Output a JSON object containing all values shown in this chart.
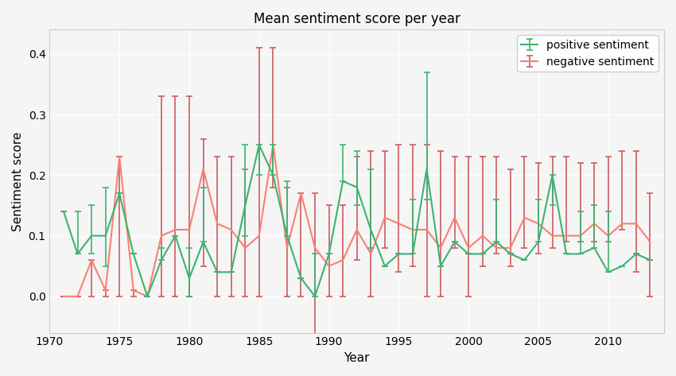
{
  "title": "Mean sentiment score per year",
  "xlabel": "Year",
  "ylabel": "Sentiment score",
  "background_color": "#f5f5f5",
  "grid_color": "#ffffff",
  "pos_line_color": "#3cb371",
  "pos_err_color": "#3cb371",
  "neg_line_color": "#fa8072",
  "neg_err_color": "#cd5c5c",
  "years": [
    1971,
    1972,
    1973,
    1974,
    1975,
    1976,
    1977,
    1978,
    1979,
    1980,
    1981,
    1982,
    1983,
    1984,
    1985,
    1986,
    1987,
    1988,
    1989,
    1990,
    1991,
    1992,
    1993,
    1994,
    1995,
    1996,
    1997,
    1998,
    1999,
    2000,
    2001,
    2002,
    2003,
    2004,
    2005,
    2006,
    2007,
    2008,
    2009,
    2010,
    2011,
    2012,
    2013
  ],
  "pos_mean": [
    0.14,
    0.07,
    0.1,
    0.1,
    0.17,
    0.07,
    0.0,
    0.06,
    0.1,
    0.03,
    0.09,
    0.04,
    0.04,
    0.15,
    0.25,
    0.2,
    0.1,
    0.03,
    0.0,
    0.07,
    0.19,
    0.18,
    0.11,
    0.05,
    0.07,
    0.07,
    0.21,
    0.05,
    0.09,
    0.07,
    0.07,
    0.09,
    0.07,
    0.06,
    0.09,
    0.2,
    0.07,
    0.07,
    0.08,
    0.04,
    0.05,
    0.07,
    0.06
  ],
  "pos_err_low": [
    0.0,
    0.0,
    0.03,
    0.05,
    0.0,
    0.0,
    0.0,
    0.0,
    0.0,
    0.03,
    0.0,
    0.0,
    0.0,
    0.05,
    0.05,
    0.0,
    0.0,
    0.0,
    0.0,
    0.0,
    0.0,
    0.03,
    0.03,
    0.0,
    0.0,
    0.0,
    0.05,
    0.0,
    0.0,
    0.0,
    0.0,
    0.0,
    0.0,
    0.0,
    0.0,
    0.05,
    0.0,
    0.0,
    0.0,
    0.0,
    0.0,
    0.0,
    0.0
  ],
  "pos_err_high": [
    0.0,
    0.07,
    0.05,
    0.08,
    0.0,
    0.0,
    0.0,
    0.02,
    0.0,
    0.05,
    0.09,
    0.0,
    0.0,
    0.1,
    0.0,
    0.05,
    0.09,
    0.0,
    0.07,
    0.0,
    0.06,
    0.06,
    0.1,
    0.0,
    0.0,
    0.09,
    0.16,
    0.0,
    0.0,
    0.0,
    0.0,
    0.07,
    0.0,
    0.0,
    0.07,
    0.0,
    0.0,
    0.07,
    0.07,
    0.1,
    0.0,
    0.0,
    0.0
  ],
  "neg_mean": [
    0.0,
    0.0,
    0.06,
    0.01,
    0.23,
    0.01,
    0.0,
    0.1,
    0.11,
    0.11,
    0.21,
    0.12,
    0.11,
    0.08,
    0.1,
    0.25,
    0.08,
    0.17,
    0.08,
    0.05,
    0.06,
    0.11,
    0.07,
    0.13,
    0.12,
    0.11,
    0.11,
    0.08,
    0.13,
    0.08,
    0.1,
    0.08,
    0.08,
    0.13,
    0.12,
    0.1,
    0.1,
    0.1,
    0.12,
    0.1,
    0.12,
    0.12,
    0.09
  ],
  "neg_err_low": [
    0.0,
    0.0,
    0.06,
    0.01,
    0.23,
    0.01,
    0.0,
    0.1,
    0.11,
    0.11,
    0.16,
    0.12,
    0.11,
    0.08,
    0.1,
    0.07,
    0.08,
    0.17,
    0.16,
    0.05,
    0.06,
    0.05,
    0.07,
    0.05,
    0.08,
    0.06,
    0.11,
    0.08,
    0.05,
    0.08,
    0.05,
    0.01,
    0.03,
    0.05,
    0.05,
    0.02,
    0.01,
    0.01,
    0.03,
    0.01,
    0.01,
    0.08,
    0.09
  ],
  "neg_err_high": [
    0.0,
    0.0,
    0.0,
    0.0,
    0.0,
    0.0,
    0.0,
    0.23,
    0.22,
    0.22,
    0.05,
    0.11,
    0.12,
    0.13,
    0.31,
    0.16,
    0.1,
    0.0,
    0.09,
    0.1,
    0.09,
    0.12,
    0.17,
    0.11,
    0.13,
    0.14,
    0.14,
    0.16,
    0.1,
    0.15,
    0.13,
    0.15,
    0.13,
    0.1,
    0.1,
    0.13,
    0.13,
    0.12,
    0.1,
    0.13,
    0.12,
    0.12,
    0.08
  ],
  "xlim": [
    1970,
    2014
  ],
  "ylim": [
    -0.06,
    0.44
  ],
  "linewidth": 1.5,
  "elinewidth": 1.2,
  "capsize": 3
}
